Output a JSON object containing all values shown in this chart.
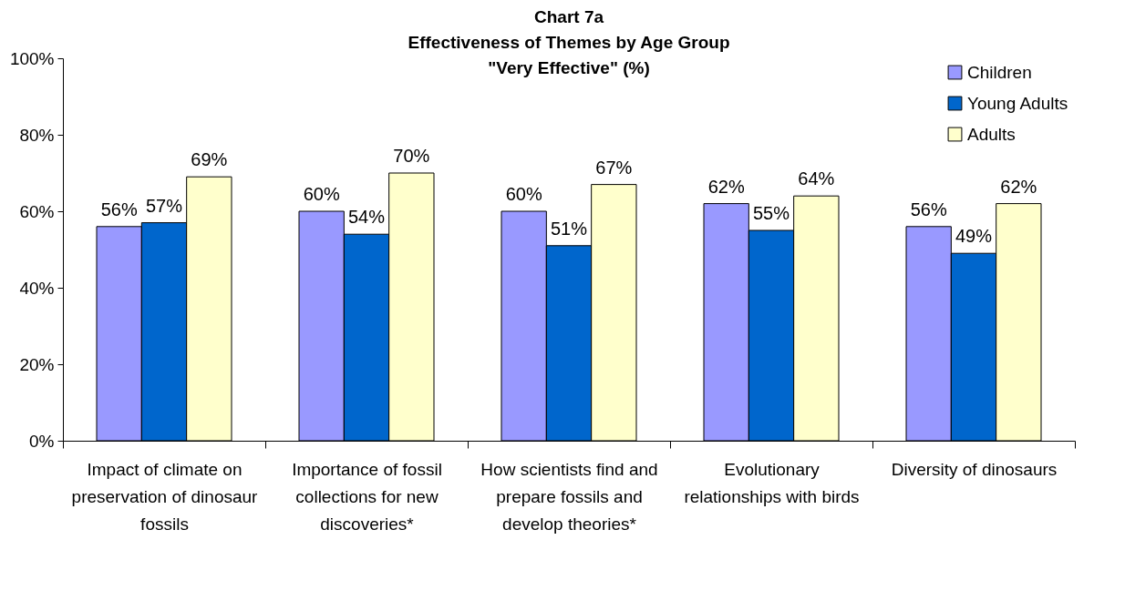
{
  "chart_data": {
    "type": "bar",
    "title": "Chart 7a\nEffectiveness of Themes by Age Group\n\"Very Effective\" (%)",
    "categories": [
      "Impact of climate on preservation of dinosaur fossils",
      "Importance of fossil collections for new discoveries*",
      "How scientists find and prepare fossils and develop theories*",
      "Evolutionary relationships with birds",
      "Diversity of dinosaurs"
    ],
    "series": [
      {
        "name": "Children",
        "color": "#9999ff",
        "values": [
          56,
          60,
          60,
          62,
          56
        ],
        "value_labels": [
          "56%",
          "60%",
          "60%",
          "62%",
          "56%"
        ]
      },
      {
        "name": "Young Adults",
        "color": "#0066cc",
        "values": [
          57,
          54,
          51,
          55,
          49
        ],
        "value_labels": [
          "57%",
          "54%",
          "51%",
          "55%",
          "49%"
        ]
      },
      {
        "name": "Adults",
        "color": "#ffffcc",
        "values": [
          69,
          70,
          67,
          64,
          62
        ],
        "value_labels": [
          "69%",
          "70%",
          "67%",
          "64%",
          "62%"
        ]
      }
    ],
    "ylim": [
      0,
      100
    ],
    "yticks": [
      {
        "value": 0,
        "label": "0%"
      },
      {
        "value": 20,
        "label": "20%"
      },
      {
        "value": 40,
        "label": "40%"
      },
      {
        "value": 60,
        "label": "60%"
      },
      {
        "value": 80,
        "label": "80%"
      },
      {
        "value": 100,
        "label": "100%"
      }
    ],
    "grid": false,
    "legend": "top right"
  }
}
